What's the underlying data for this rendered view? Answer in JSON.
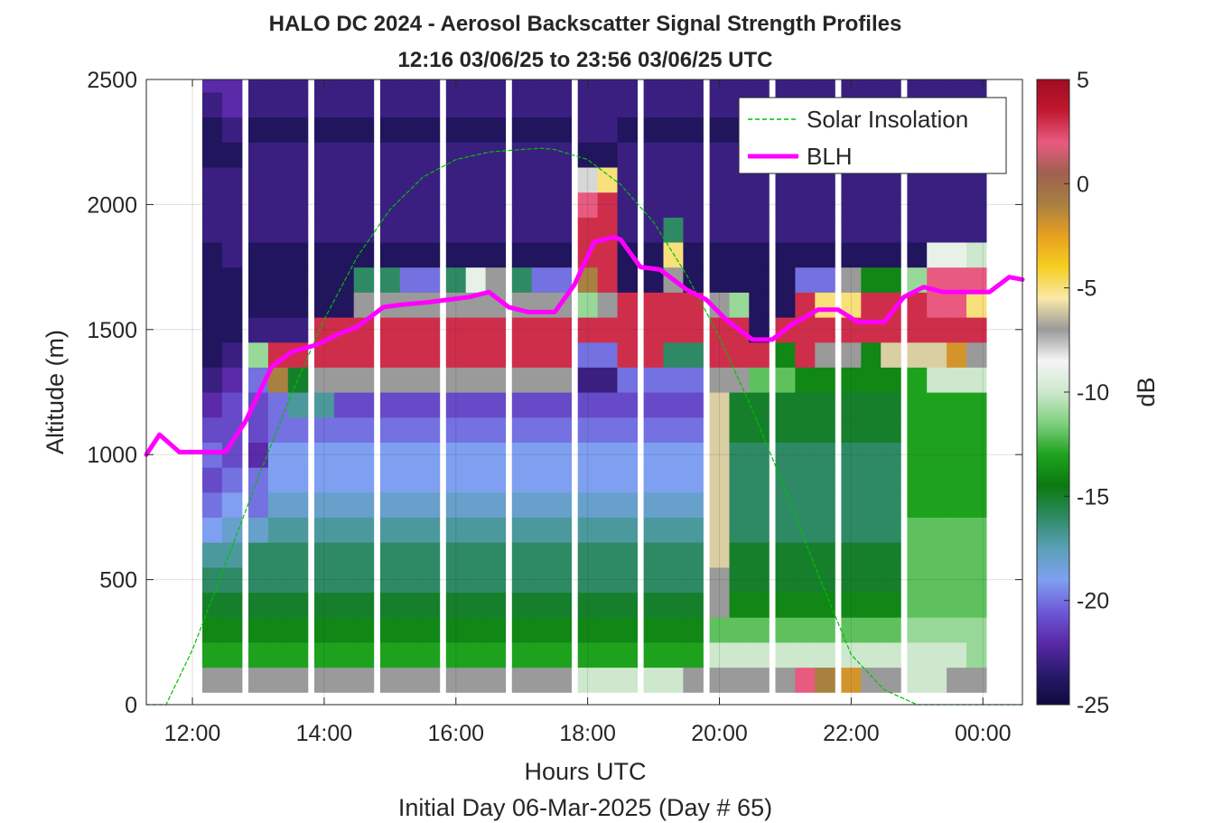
{
  "chart_data": {
    "type": "heatmap",
    "title": "HALO DC 2024 - Aerosol Backscatter Signal Strength Profiles",
    "subtitle": "12:16 03/06/25 to 23:56 03/06/25  UTC",
    "xlabel": "Hours UTC",
    "xlabel2": "Initial Day 06-Mar-2025 (Day # 65)",
    "ylabel": "Altitude (m)",
    "xlim": [
      11.3,
      24.6
    ],
    "ylim": [
      0,
      2500
    ],
    "x_ticks": [
      12,
      14,
      16,
      18,
      20,
      22,
      24
    ],
    "x_tick_labels": [
      "12:00",
      "14:00",
      "16:00",
      "18:00",
      "20:00",
      "22:00",
      "00:00"
    ],
    "y_ticks": [
      0,
      500,
      1000,
      1500,
      2000,
      2500
    ],
    "y_tick_labels": [
      "0",
      "500",
      "1000",
      "1500",
      "2000",
      "2500"
    ],
    "grid": true,
    "legend_position": "top-right",
    "colorbar": {
      "label": "dB",
      "limits": [
        -25,
        5
      ],
      "ticks": [
        5,
        0,
        -5,
        -10,
        -15,
        -20,
        -25
      ],
      "tick_labels": [
        "5",
        "0",
        "-5",
        "-10",
        "-15",
        "-20",
        "-25"
      ],
      "colors": [
        "#0f0a3e",
        "#2a1a6e",
        "#5a2aa8",
        "#6e5ad8",
        "#7fa0f0",
        "#5aa0b8",
        "#2e8a64",
        "#0a7a10",
        "#1ea21e",
        "#7ed07e",
        "#cde8cd",
        "#f5f5f5",
        "#9a9a9a",
        "#fae8a8",
        "#f5cf20",
        "#e8a020",
        "#a88040",
        "#a06050",
        "#e85a80",
        "#c21830",
        "#a00c20"
      ]
    },
    "profiles": {
      "hours": [
        12.3,
        12.6,
        13.0,
        13.3,
        13.6,
        14.0,
        14.3,
        14.6,
        15.0,
        15.3,
        15.6,
        16.0,
        16.3,
        16.6,
        17.0,
        17.3,
        17.6,
        18.0,
        18.3,
        18.6,
        19.0,
        19.3,
        19.6,
        20.0,
        20.3,
        20.6,
        21.0,
        21.3,
        21.6,
        22.0,
        22.3,
        22.6,
        23.0,
        23.3,
        23.6,
        23.9
      ],
      "altitudes_m": [
        100,
        200,
        300,
        400,
        500,
        600,
        700,
        800,
        900,
        1000,
        1100,
        1200,
        1300,
        1400,
        1500,
        1600,
        1700,
        1800,
        1900,
        2000,
        2100,
        2200,
        2300,
        2400,
        2500
      ],
      "dB": [
        [
          -7,
          -13,
          -14,
          -15,
          -16,
          -17,
          -19,
          -20,
          -21,
          -20,
          -21,
          -22,
          -23,
          -24,
          -24,
          -24,
          -24,
          -24,
          -23,
          -23,
          -23,
          -24,
          -24,
          -23,
          -22
        ],
        [
          -7,
          -13,
          -14,
          -15,
          -16,
          -17,
          -18,
          -19,
          -20,
          -21,
          -21,
          -21,
          -22,
          -23,
          -24,
          -24,
          -24,
          -23,
          -23,
          -23,
          -23,
          -24,
          -23,
          -22,
          -22
        ],
        [
          -7,
          -13,
          -14,
          -15,
          -16,
          -16,
          -18,
          -20,
          -20,
          -22,
          -21,
          -21,
          -20,
          -11,
          -23,
          -24,
          -24,
          -24,
          -23,
          -23,
          -23,
          -23,
          -24,
          -23,
          -23
        ],
        [
          -7,
          -13,
          -14,
          -15,
          -16,
          -16,
          -17,
          -18,
          -19,
          -19,
          -20,
          -20,
          -1,
          3,
          -23,
          -24,
          -24,
          -24,
          -23,
          -23,
          -23,
          -23,
          -24,
          -23,
          -23
        ],
        [
          -7,
          -13,
          -14,
          -15,
          -16,
          -16,
          -17,
          -18,
          -19,
          -19,
          -20,
          -17,
          -15,
          3,
          -23,
          -24,
          -24,
          -24,
          -23,
          -23,
          -23,
          -23,
          -24,
          -23,
          -23
        ],
        [
          -7,
          -13,
          -14,
          -15,
          -16,
          -16,
          -17,
          -18,
          -19,
          -19,
          -20,
          -17,
          -7,
          3,
          3,
          -24,
          -24,
          -24,
          -23,
          -23,
          -23,
          -23,
          -24,
          -23,
          -23
        ],
        [
          -7,
          -13,
          -14,
          -15,
          -16,
          -16,
          -17,
          -18,
          -19,
          -19,
          -20,
          -21,
          -7,
          3,
          3,
          -24,
          -24,
          -24,
          -23,
          -23,
          -23,
          -23,
          -24,
          -23,
          -23
        ],
        [
          -7,
          -13,
          -14,
          -15,
          -16,
          -16,
          -17,
          -18,
          -19,
          -19,
          -20,
          -21,
          -7,
          3,
          3,
          -7,
          -16,
          -24,
          -23,
          -23,
          -23,
          -23,
          -24,
          -23,
          -23
        ],
        [
          -7,
          -13,
          -14,
          -15,
          -16,
          -16,
          -17,
          -18,
          -19,
          -19,
          -20,
          -21,
          -7,
          3,
          3,
          -7,
          -16,
          -24,
          -23,
          -23,
          -23,
          -23,
          -24,
          -23,
          -23
        ],
        [
          -7,
          -13,
          -14,
          -15,
          -16,
          -16,
          -17,
          -18,
          -19,
          -19,
          -20,
          -21,
          -7,
          3,
          3,
          -7,
          -20,
          -24,
          -23,
          -23,
          -23,
          -23,
          -24,
          -23,
          -23
        ],
        [
          -7,
          -13,
          -14,
          -15,
          -16,
          -16,
          -17,
          -18,
          -19,
          -19,
          -20,
          -21,
          -7,
          3,
          3,
          -7,
          -20,
          -24,
          -23,
          -23,
          -23,
          -23,
          -24,
          -23,
          -23
        ],
        [
          -7,
          -13,
          -14,
          -15,
          -16,
          -16,
          -17,
          -18,
          -19,
          -19,
          -20,
          -21,
          -7,
          3,
          3,
          -7,
          -16,
          -24,
          -23,
          -23,
          -23,
          -23,
          -24,
          -23,
          -23
        ],
        [
          -7,
          -13,
          -14,
          -15,
          -16,
          -16,
          -17,
          -18,
          -19,
          -19,
          -20,
          -21,
          -7,
          3,
          3,
          -7,
          -9,
          -24,
          -23,
          -23,
          -23,
          -23,
          -24,
          -23,
          -23
        ],
        [
          -7,
          -13,
          -14,
          -15,
          -16,
          -16,
          -17,
          -18,
          -19,
          -19,
          -20,
          -21,
          -7,
          3,
          3,
          -7,
          -7,
          -24,
          -23,
          -23,
          -23,
          -23,
          -24,
          -23,
          -23
        ],
        [
          -7,
          -13,
          -14,
          -15,
          -16,
          -16,
          -17,
          -18,
          -19,
          -19,
          -20,
          -21,
          -7,
          3,
          3,
          -7,
          -16,
          -24,
          -23,
          -23,
          -23,
          -23,
          -24,
          -23,
          -23
        ],
        [
          -7,
          -13,
          -14,
          -15,
          -16,
          -16,
          -17,
          -18,
          -19,
          -19,
          -20,
          -21,
          -7,
          3,
          3,
          -7,
          -20,
          -24,
          -23,
          -23,
          -23,
          -23,
          -24,
          -23,
          -23
        ],
        [
          -7,
          -13,
          -14,
          -15,
          -16,
          -16,
          -17,
          -18,
          -19,
          -19,
          -20,
          -21,
          -7,
          3,
          3,
          -7,
          -20,
          -24,
          -23,
          -23,
          -23,
          -23,
          -24,
          -23,
          -23
        ],
        [
          -10,
          -13,
          -14,
          -15,
          -16,
          -16,
          -17,
          -18,
          -19,
          -19,
          -20,
          -21,
          -23,
          -20,
          3,
          -11,
          -1,
          3,
          3,
          2,
          -8,
          -24,
          -23,
          -23,
          -23
        ],
        [
          -10,
          -13,
          -14,
          -15,
          -16,
          -16,
          -17,
          -18,
          -19,
          -19,
          -20,
          -21,
          -23,
          -20,
          3,
          -7,
          3,
          3,
          3,
          3,
          -5,
          -24,
          -23,
          -23,
          -23
        ],
        [
          -10,
          -13,
          -14,
          -15,
          -16,
          -16,
          -17,
          -18,
          -19,
          -19,
          -20,
          -21,
          -20,
          3,
          3,
          3,
          -24,
          -24,
          -23,
          -23,
          -23,
          -23,
          -24,
          -23,
          -23
        ],
        [
          -10,
          -13,
          -14,
          -15,
          -16,
          -16,
          -17,
          -18,
          -19,
          -19,
          -20,
          -21,
          -20,
          3,
          3,
          3,
          -24,
          -24,
          -23,
          -23,
          -23,
          -23,
          -24,
          -23,
          -23
        ],
        [
          -10,
          -13,
          -14,
          -15,
          -16,
          -16,
          -17,
          -18,
          -19,
          -19,
          -20,
          -21,
          -20,
          -16,
          3,
          3,
          -7,
          -5,
          -16,
          -23,
          -23,
          -23,
          -24,
          -23,
          -23
        ],
        [
          -7,
          -13,
          -14,
          -15,
          -16,
          -16,
          -17,
          -18,
          -19,
          -19,
          -20,
          -21,
          -20,
          -16,
          3,
          3,
          -24,
          -24,
          -23,
          -23,
          -23,
          -23,
          -24,
          -23,
          -23
        ],
        [
          -7,
          -10,
          -12,
          -7,
          -7,
          -6,
          -6,
          -6,
          -6,
          -6,
          -6,
          -6,
          -7,
          3,
          3,
          -7,
          -24,
          -24,
          -23,
          -23,
          -23,
          -23,
          -24,
          -23,
          -23
        ],
        [
          -7,
          -10,
          -12,
          -14,
          -15,
          -15,
          -16,
          -16,
          -16,
          -16,
          -15,
          -15,
          -7,
          3,
          3,
          -11,
          -24,
          -24,
          -23,
          -23,
          -23,
          -23,
          -24,
          -23,
          -23
        ],
        [
          -7,
          -10,
          -12,
          -14,
          -15,
          -15,
          -16,
          -16,
          -16,
          -16,
          -15,
          -15,
          -12,
          3,
          -24,
          -24,
          -24,
          -24,
          -23,
          -23,
          -23,
          -23,
          -24,
          -23,
          -23
        ],
        [
          -7,
          -10,
          -12,
          -14,
          -15,
          -15,
          -16,
          -16,
          -16,
          -16,
          -15,
          -15,
          -12,
          -14,
          3,
          -24,
          -24,
          -24,
          -23,
          -23,
          -23,
          -23,
          -24,
          -23,
          -23
        ],
        [
          2,
          -10,
          -12,
          -14,
          -15,
          -15,
          -16,
          -16,
          -16,
          -16,
          -15,
          -15,
          -14,
          3,
          3,
          3,
          -20,
          -24,
          -23,
          -23,
          -23,
          -23,
          -24,
          -23,
          -23
        ],
        [
          -1,
          -10,
          -12,
          -14,
          -15,
          -15,
          -16,
          -16,
          -16,
          -16,
          -15,
          -15,
          -14,
          -7,
          3,
          -5,
          -20,
          -24,
          -23,
          -23,
          -23,
          -23,
          -24,
          -23,
          -23
        ],
        [
          -2,
          -10,
          -12,
          -14,
          -15,
          -15,
          -16,
          -16,
          -16,
          -16,
          -15,
          -15,
          -14,
          -7,
          3,
          -5,
          -7,
          -24,
          -23,
          -23,
          -23,
          -23,
          -24,
          -23,
          -23
        ],
        [
          -7,
          -10,
          -12,
          -14,
          -15,
          -15,
          -16,
          -16,
          -16,
          -16,
          -15,
          -15,
          -14,
          -14,
          3,
          3,
          -14,
          -24,
          -23,
          -23,
          -23,
          -23,
          -24,
          -23,
          -23
        ],
        [
          -7,
          -10,
          -12,
          -14,
          -15,
          -15,
          -16,
          -16,
          -16,
          -16,
          -15,
          -15,
          -14,
          -6,
          3,
          3,
          -14,
          -24,
          -23,
          -23,
          -23,
          -23,
          -24,
          -23,
          -23
        ],
        [
          -10,
          -10,
          -11,
          -12,
          -12,
          -12,
          -12,
          -13,
          -13,
          -13,
          -13,
          -13,
          -13,
          -6,
          3,
          3,
          -11,
          -24,
          -23,
          -23,
          -23,
          -23,
          -24,
          -23,
          -23
        ],
        [
          -10,
          -10,
          -11,
          -12,
          -12,
          -12,
          -12,
          -13,
          -13,
          -13,
          -13,
          -13,
          -10,
          -6,
          3,
          2,
          2,
          -9,
          -23,
          -23,
          -23,
          -23,
          -24,
          -23,
          -23
        ],
        [
          -7,
          -10,
          -11,
          -12,
          -12,
          -12,
          -12,
          -13,
          -13,
          -13,
          -13,
          -13,
          -10,
          -2,
          3,
          2,
          2,
          -9,
          -23,
          -23,
          -23,
          -23,
          -24,
          -23,
          -23
        ],
        [
          -7,
          -11,
          -11,
          -12,
          -12,
          -12,
          -12,
          -13,
          -13,
          -13,
          -13,
          -13,
          -10,
          -7,
          3,
          -5,
          2,
          -10,
          -23,
          -23,
          -23,
          -23,
          -24,
          -23,
          -23
        ]
      ]
    },
    "series": [
      {
        "name": "Solar Insolation",
        "style": "dashed",
        "color": "#00c000",
        "x": [
          11.3,
          11.6,
          12.0,
          12.5,
          13.0,
          13.5,
          14.0,
          14.5,
          15.0,
          15.5,
          16.0,
          16.5,
          17.0,
          17.3,
          17.5,
          18.0,
          18.5,
          19.0,
          19.5,
          20.0,
          20.5,
          21.0,
          21.5,
          22.0,
          22.5,
          23.0,
          23.1,
          24.6
        ],
        "y": [
          0,
          0,
          220,
          560,
          910,
          1240,
          1540,
          1790,
          1980,
          2110,
          2180,
          2210,
          2220,
          2225,
          2220,
          2180,
          2080,
          1930,
          1720,
          1470,
          1180,
          860,
          520,
          200,
          60,
          0,
          0,
          0
        ]
      },
      {
        "name": "BLH",
        "style": "solid",
        "color": "#ff00ff",
        "x": [
          11.3,
          11.5,
          11.8,
          12.1,
          12.5,
          12.8,
          13.2,
          13.5,
          13.9,
          14.2,
          14.5,
          14.9,
          15.2,
          15.6,
          15.9,
          16.2,
          16.5,
          16.8,
          17.1,
          17.5,
          17.8,
          18.1,
          18.4,
          18.5,
          18.8,
          19.1,
          19.5,
          19.8,
          20.1,
          20.5,
          20.8,
          21.1,
          21.5,
          21.8,
          22.1,
          22.5,
          22.8,
          23.1,
          23.4,
          23.8,
          24.1,
          24.4,
          24.6
        ],
        "y": [
          1000,
          1080,
          1010,
          1010,
          1010,
          1130,
          1350,
          1410,
          1440,
          1480,
          1510,
          1590,
          1600,
          1610,
          1620,
          1630,
          1650,
          1590,
          1570,
          1570,
          1680,
          1850,
          1870,
          1860,
          1750,
          1740,
          1660,
          1620,
          1540,
          1460,
          1460,
          1520,
          1580,
          1580,
          1530,
          1530,
          1630,
          1670,
          1650,
          1650,
          1650,
          1710,
          1700
        ]
      }
    ]
  }
}
